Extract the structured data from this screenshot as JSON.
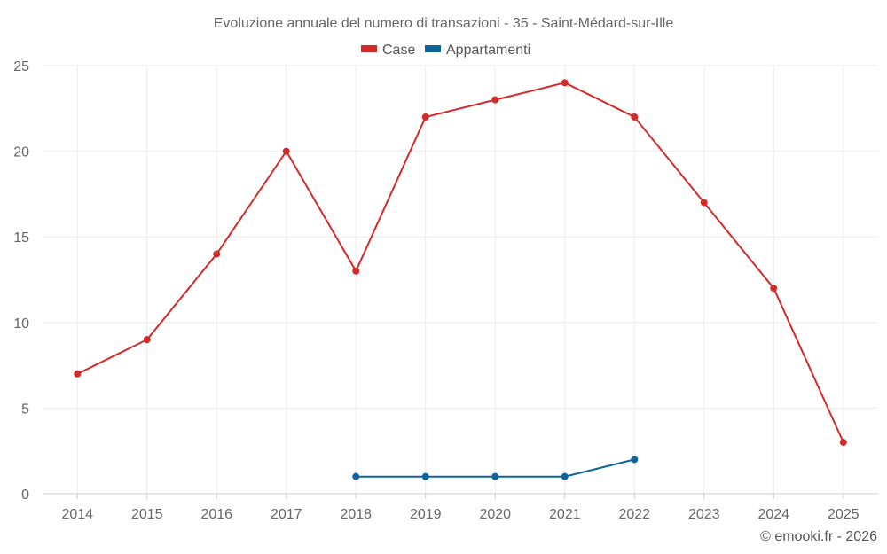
{
  "chart_data": {
    "type": "line",
    "title": "Evoluzione annuale del numero di transazioni - 35 - Saint-Médard-sur-Ille",
    "categories": [
      "2014",
      "2015",
      "2016",
      "2017",
      "2018",
      "2019",
      "2020",
      "2021",
      "2022",
      "2023",
      "2024",
      "2025"
    ],
    "series": [
      {
        "name": "Case",
        "color": "#d32a2a",
        "values": [
          7,
          9,
          14,
          20,
          13,
          22,
          23,
          24,
          22,
          17,
          12,
          3
        ]
      },
      {
        "name": "Appartamenti",
        "color": "#0d65a0",
        "values": [
          null,
          null,
          null,
          null,
          1,
          1,
          1,
          1,
          2,
          null,
          null,
          null
        ]
      }
    ],
    "ylim": [
      0,
      25
    ],
    "yticks": [
      0,
      5,
      10,
      15,
      20,
      25
    ],
    "grid": true,
    "legend": "top-center",
    "xlabel": "",
    "ylabel": ""
  },
  "credit": "© emooki.fr - 2026"
}
